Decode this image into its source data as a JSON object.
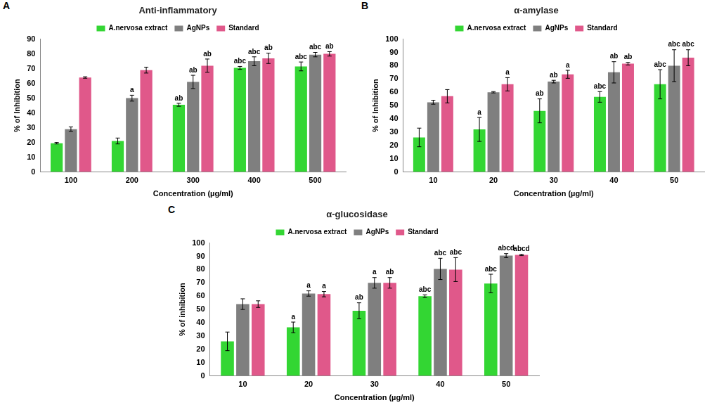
{
  "chart_data": [
    {
      "type": "bar",
      "panel_label": "A",
      "title": "Anti-inflammatory",
      "x_label": "Concentration (µg/ml)",
      "y_label": "% of Inhibition",
      "categories": [
        "100",
        "200",
        "300",
        "400",
        "500"
      ],
      "series": [
        {
          "name": "A.nervosa extract",
          "color": "#33d633",
          "values": [
            19.5,
            21,
            45.5,
            70.5,
            71.5
          ],
          "errors": [
            0.5,
            2,
            1,
            1,
            3
          ],
          "annotations": [
            null,
            null,
            "ab",
            "abc",
            "abc"
          ]
        },
        {
          "name": "AgNPs",
          "color": "#7f7f7f",
          "values": [
            29,
            50,
            61,
            75,
            79.5
          ],
          "errors": [
            1.5,
            2,
            4.5,
            3,
            1.5
          ],
          "annotations": [
            null,
            "a",
            "ab",
            "abc",
            "abc"
          ]
        },
        {
          "name": "Standard",
          "color": "#e0588a",
          "values": [
            64,
            69,
            72,
            77,
            80
          ],
          "errors": [
            0.5,
            2,
            4.5,
            3.5,
            1.5
          ],
          "annotations": [
            null,
            null,
            "ab",
            "ab",
            "ab"
          ]
        }
      ],
      "ylim": [
        0,
        90
      ],
      "yticks": [
        0,
        10,
        20,
        30,
        40,
        50,
        60,
        70,
        80,
        90
      ],
      "grid": false,
      "legend": "top"
    },
    {
      "type": "bar",
      "panel_label": "B",
      "title": "α-amylase",
      "x_label": "Concentration (µg/ml)",
      "y_label": "% of Inhibition",
      "categories": [
        "10",
        "20",
        "30",
        "40",
        "50"
      ],
      "series": [
        {
          "name": "A.nervosa extract",
          "color": "#33d633",
          "values": [
            26,
            32,
            46,
            56.5,
            66
          ],
          "errors": [
            7,
            9,
            9,
            4,
            11
          ],
          "annotations": [
            null,
            "a",
            "ab",
            "abc",
            "abc"
          ]
        },
        {
          "name": "AgNPs",
          "color": "#7f7f7f",
          "values": [
            52.5,
            60,
            68,
            75,
            80
          ],
          "errors": [
            1.5,
            0.5,
            1,
            8,
            12
          ],
          "annotations": [
            null,
            null,
            "ab",
            "ab",
            "abc"
          ]
        },
        {
          "name": "Standard",
          "color": "#e0588a",
          "values": [
            57,
            66,
            73.5,
            81.5,
            86
          ],
          "errors": [
            5,
            5,
            3,
            1,
            6
          ],
          "annotations": [
            null,
            "a",
            "a",
            "ab",
            "abc"
          ]
        }
      ],
      "ylim": [
        0,
        100
      ],
      "yticks": [
        0,
        10,
        20,
        30,
        40,
        50,
        60,
        70,
        80,
        90,
        100
      ],
      "grid": false,
      "legend": "top"
    },
    {
      "type": "bar",
      "panel_label": "C",
      "title": "α-glucosidase",
      "x_label": "Concentration (µg/ml)",
      "y_label": "% of inhibition",
      "categories": [
        "10",
        "20",
        "30",
        "40",
        "50"
      ],
      "series": [
        {
          "name": "A.nervosa extract",
          "color": "#33d633",
          "values": [
            26,
            36.5,
            49,
            60,
            69.5
          ],
          "errors": [
            7,
            4,
            6,
            1,
            7
          ],
          "annotations": [
            null,
            "a",
            "ab",
            "abc",
            "abc"
          ]
        },
        {
          "name": "AgNPs",
          "color": "#7f7f7f",
          "values": [
            54,
            62,
            70,
            80.5,
            90.5
          ],
          "errors": [
            4,
            2,
            4,
            8,
            1.5
          ],
          "annotations": [
            null,
            "a",
            "a",
            "abc",
            "abcd"
          ]
        },
        {
          "name": "Standard",
          "color": "#e0588a",
          "values": [
            54,
            61.5,
            70,
            80,
            91
          ],
          "errors": [
            2.5,
            2,
            4,
            9,
            0.5
          ],
          "annotations": [
            null,
            "a",
            "ab",
            "abc",
            "abcd"
          ]
        }
      ],
      "ylim": [
        0,
        100
      ],
      "yticks": [
        0,
        10,
        20,
        30,
        40,
        50,
        60,
        70,
        80,
        90,
        100
      ],
      "grid": false,
      "legend": "top"
    }
  ]
}
